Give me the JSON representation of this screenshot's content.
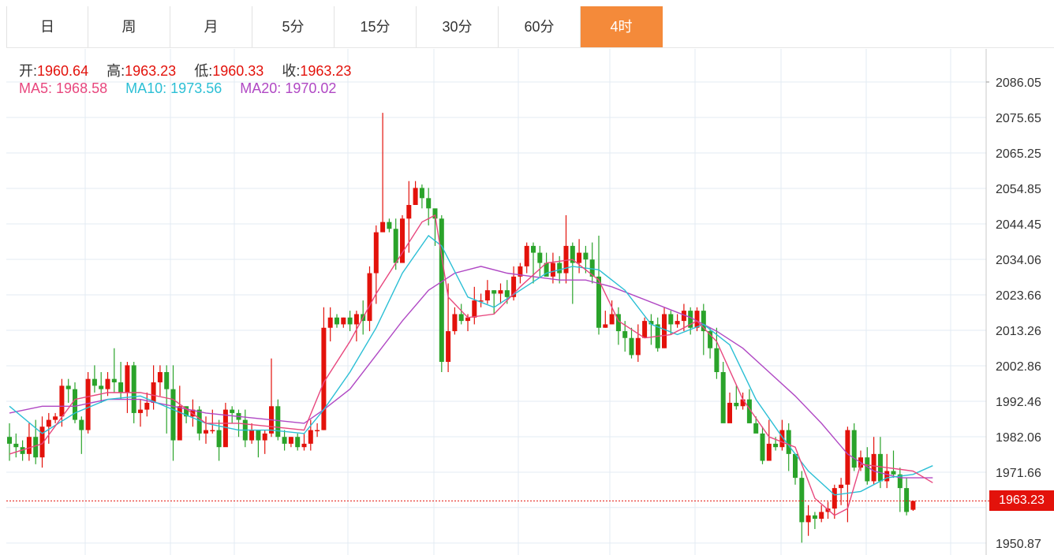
{
  "tabs": [
    {
      "label": "日",
      "active": false
    },
    {
      "label": "周",
      "active": false
    },
    {
      "label": "月",
      "active": false
    },
    {
      "label": "5分",
      "active": false
    },
    {
      "label": "15分",
      "active": false
    },
    {
      "label": "30分",
      "active": false
    },
    {
      "label": "60分",
      "active": false
    },
    {
      "label": "4时",
      "active": true
    }
  ],
  "info": {
    "open_label": "开:",
    "open_value": "1960.64",
    "high_label": "高:",
    "high_value": "1963.23",
    "low_label": "低:",
    "low_value": "1960.33",
    "close_label": "收:",
    "close_value": "1963.23",
    "ma5_label": "MA5:",
    "ma5_value": "1968.58",
    "ma10_label": "MA10:",
    "ma10_value": "1973.56",
    "ma20_label": "MA20:",
    "ma20_value": "1970.02"
  },
  "current_price_label": "1963.23",
  "colors": {
    "up": "#e3120b",
    "down": "#2aa32a",
    "ma5": "#e8477e",
    "ma10": "#2bbfd5",
    "ma20": "#b048c4",
    "active_tab": "#f48a3a",
    "grid": "#e3ebf3"
  },
  "chart_data": {
    "type": "candlestick",
    "y_ticks": [
      "2086.05",
      "2075.65",
      "2065.25",
      "2054.85",
      "2044.45",
      "2034.06",
      "2023.66",
      "2013.26",
      "2002.86",
      "1992.46",
      "1982.06",
      "1971.66",
      "1950.87"
    ],
    "ylim": [
      1948,
      2092
    ],
    "current_price": 1963.23,
    "candles": [
      [
        1982,
        1980,
        1986,
        1975
      ],
      [
        1980,
        1979,
        1983,
        1976
      ],
      [
        1979,
        1977,
        1981,
        1975
      ],
      [
        1977,
        1982,
        1986,
        1975
      ],
      [
        1982,
        1976,
        1987,
        1974
      ],
      [
        1976,
        1985,
        1988,
        1973
      ],
      [
        1985,
        1987,
        1989,
        1980
      ],
      [
        1987,
        1988,
        1989,
        1986
      ],
      [
        1988,
        1997,
        1999,
        1985
      ],
      [
        1997,
        1996,
        1999,
        1992
      ],
      [
        1996,
        1987,
        1998,
        1986
      ],
      [
        1987,
        1984,
        1988,
        1977
      ],
      [
        1984,
        1999,
        2001,
        1983
      ],
      [
        1999,
        1997,
        2003,
        1995
      ],
      [
        1997,
        1996,
        2001,
        1992
      ],
      [
        1996,
        1999,
        2001,
        1994
      ],
      [
        1999,
        1998,
        2008,
        1995
      ],
      [
        1998,
        1995,
        2004,
        1993
      ],
      [
        1995,
        2003,
        2004,
        1989
      ],
      [
        2003,
        1989,
        2004,
        1986
      ],
      [
        1989,
        1990,
        1993,
        1985
      ],
      [
        1990,
        1992,
        1995,
        1988
      ],
      [
        1992,
        1998,
        2003,
        1990
      ],
      [
        1998,
        2001,
        2003,
        1994
      ],
      [
        2001,
        1996,
        2003,
        1983
      ],
      [
        1996,
        1981,
        2003,
        1975
      ],
      [
        1981,
        1991,
        1997,
        1985
      ],
      [
        1991,
        1988,
        1991,
        1986
      ],
      [
        1988,
        1990,
        1993,
        1985
      ],
      [
        1990,
        1983,
        1991,
        1981
      ],
      [
        1983,
        1984,
        1988,
        1980
      ],
      [
        1984,
        1984,
        1990,
        1983
      ],
      [
        1984,
        1979,
        1987,
        1975
      ],
      [
        1979,
        1990,
        1992,
        1985
      ],
      [
        1990,
        1989,
        1991,
        1986
      ],
      [
        1989,
        1987,
        1990,
        1982
      ],
      [
        1987,
        1981,
        1990,
        1979
      ],
      [
        1981,
        1984,
        1986,
        1980
      ],
      [
        1984,
        1981,
        1983,
        1976
      ],
      [
        1981,
        1983,
        1984,
        1977
      ],
      [
        1983,
        1991,
        2005,
        1982
      ],
      [
        1991,
        1982,
        1993,
        1981
      ],
      [
        1982,
        1980,
        1984,
        1978
      ],
      [
        1980,
        1982,
        1982,
        1979
      ],
      [
        1982,
        1979,
        1983,
        1978
      ],
      [
        1979,
        1980,
        1983,
        1978
      ],
      [
        1980,
        1984,
        1987,
        1978
      ],
      [
        1984,
        1984,
        1986,
        1982
      ],
      [
        1984,
        2014,
        2020,
        1984
      ],
      [
        2014,
        2017,
        2020,
        2010
      ],
      [
        2017,
        2015,
        2018,
        2014
      ],
      [
        2015,
        2017,
        2017,
        2014
      ],
      [
        2017,
        2015,
        2019,
        2013
      ],
      [
        2015,
        2018,
        2019,
        2010
      ],
      [
        2018,
        2016,
        2022,
        2012
      ],
      [
        2016,
        2030,
        2032,
        2013
      ],
      [
        2030,
        2042,
        2044,
        2021
      ],
      [
        2042,
        2045,
        2077,
        2045
      ],
      [
        2045,
        2043,
        2046,
        2042
      ],
      [
        2043,
        2033,
        2046,
        2031
      ],
      [
        2033,
        2046,
        2047,
        2034
      ],
      [
        2046,
        2050,
        2057,
        2036
      ],
      [
        2050,
        2055,
        2057,
        2052
      ],
      [
        2055,
        2052,
        2056,
        2049
      ],
      [
        2052,
        2049,
        2055,
        2044
      ],
      [
        2049,
        2046,
        2047,
        2038
      ],
      [
        2046,
        2004,
        2047,
        2001
      ],
      [
        2004,
        2013,
        2027,
        2001
      ],
      [
        2013,
        2018,
        2020,
        2012
      ],
      [
        2018,
        2016,
        2021,
        2015
      ],
      [
        2016,
        2017,
        2018,
        2013
      ],
      [
        2017,
        2022,
        2026,
        2015
      ],
      [
        2022,
        2022,
        2024,
        2020
      ],
      [
        2022,
        2025,
        2028,
        2021
      ],
      [
        2025,
        2024,
        2025,
        2018
      ],
      [
        2024,
        2025,
        2027,
        2021
      ],
      [
        2025,
        2023,
        2028,
        2021
      ],
      [
        2023,
        2029,
        2032,
        2022
      ],
      [
        2029,
        2032,
        2033,
        2027
      ],
      [
        2032,
        2038,
        2039,
        2030
      ],
      [
        2038,
        2036,
        2039,
        2027
      ],
      [
        2036,
        2033,
        2038,
        2029
      ],
      [
        2033,
        2029,
        2036,
        2030
      ],
      [
        2029,
        2033,
        2036,
        2027
      ],
      [
        2033,
        2030,
        2035,
        2027
      ],
      [
        2030,
        2038,
        2047,
        2027
      ],
      [
        2038,
        2033,
        2039,
        2021
      ],
      [
        2033,
        2036,
        2040,
        2030
      ],
      [
        2036,
        2034,
        2038,
        2030
      ],
      [
        2034,
        2029,
        2039,
        2027
      ],
      [
        2029,
        2014,
        2041,
        2012
      ],
      [
        2014,
        2015,
        2019,
        2014
      ],
      [
        2015,
        2018,
        2022,
        2015
      ],
      [
        2018,
        2013,
        2020,
        2009
      ],
      [
        2013,
        2011,
        2016,
        2007
      ],
      [
        2011,
        2006,
        2014,
        2005
      ],
      [
        2006,
        2011,
        2015,
        2004
      ],
      [
        2011,
        2016,
        2017,
        2015
      ],
      [
        2016,
        2015,
        2018,
        2009
      ],
      [
        2015,
        2008,
        2017,
        2007
      ],
      [
        2008,
        2018,
        2020,
        2008
      ],
      [
        2018,
        2015,
        2019,
        2012
      ],
      [
        2015,
        2016,
        2018,
        2014
      ],
      [
        2016,
        2019,
        2021,
        2013
      ],
      [
        2019,
        2014,
        2020,
        2012
      ],
      [
        2014,
        2019,
        2020,
        2013
      ],
      [
        2019,
        2013,
        2021,
        2006
      ],
      [
        2013,
        2008,
        2014,
        2005
      ],
      [
        2008,
        2001,
        2014,
        1999
      ],
      [
        2001,
        1986,
        2004,
        1987
      ],
      [
        1986,
        1992,
        1995,
        1987
      ],
      [
        1992,
        1991,
        1997,
        1990
      ],
      [
        1991,
        1993,
        1995,
        1990
      ],
      [
        1993,
        1986,
        1996,
        1986
      ],
      [
        1986,
        1983,
        1988,
        1985
      ],
      [
        1983,
        1975,
        1985,
        1974
      ],
      [
        1975,
        1980,
        1987,
        1976
      ],
      [
        1980,
        1979,
        1982,
        1978
      ],
      [
        1979,
        1984,
        1987,
        1978
      ],
      [
        1984,
        1977,
        1986,
        1972
      ],
      [
        1977,
        1970,
        1976,
        1968
      ],
      [
        1970,
        1957,
        1972,
        1951
      ],
      [
        1957,
        1959,
        1962,
        1953
      ],
      [
        1959,
        1958,
        1960,
        1955
      ],
      [
        1958,
        1960,
        1962,
        1957
      ],
      [
        1960,
        1961,
        1963,
        1958
      ],
      [
        1961,
        1967,
        1968,
        1958
      ],
      [
        1967,
        1968,
        1970,
        1962
      ],
      [
        1968,
        1984,
        1985,
        1957
      ],
      [
        1984,
        1973,
        1986,
        1972
      ],
      [
        1973,
        1976,
        1978,
        1972
      ],
      [
        1976,
        1969,
        1979,
        1968
      ],
      [
        1969,
        1977,
        1982,
        1968
      ],
      [
        1977,
        1969,
        1982,
        1967
      ],
      [
        1969,
        1972,
        1977,
        1967
      ],
      [
        1972,
        1971,
        1978,
        1970
      ],
      [
        1971,
        1967,
        1973,
        1960
      ],
      [
        1967,
        1960,
        1970,
        1959
      ],
      [
        1960.64,
        1963.23,
        1963.23,
        1960.33
      ]
    ],
    "ma5": [
      [
        0,
        1977
      ],
      [
        5,
        1980
      ],
      [
        10,
        1993
      ],
      [
        15,
        1995
      ],
      [
        20,
        1995
      ],
      [
        25,
        1993
      ],
      [
        30,
        1986
      ],
      [
        35,
        1986
      ],
      [
        40,
        1985
      ],
      [
        45,
        1984
      ],
      [
        48,
        1998
      ],
      [
        52,
        2010
      ],
      [
        56,
        2024
      ],
      [
        60,
        2036
      ],
      [
        63,
        2045
      ],
      [
        65,
        2047
      ],
      [
        67,
        2023
      ],
      [
        70,
        2017
      ],
      [
        74,
        2018
      ],
      [
        78,
        2026
      ],
      [
        82,
        2033
      ],
      [
        86,
        2034
      ],
      [
        90,
        2028
      ],
      [
        93,
        2016
      ],
      [
        97,
        2011
      ],
      [
        101,
        2012
      ],
      [
        105,
        2016
      ],
      [
        108,
        2010
      ],
      [
        112,
        1993
      ],
      [
        116,
        1982
      ],
      [
        120,
        1979
      ],
      [
        123,
        1964
      ],
      [
        126,
        1959
      ],
      [
        128,
        1961
      ],
      [
        130,
        1974
      ],
      [
        134,
        1973
      ],
      [
        138,
        1972
      ],
      [
        141,
        1968.58
      ]
    ],
    "ma10": [
      [
        0,
        1991
      ],
      [
        5,
        1983
      ],
      [
        10,
        1989
      ],
      [
        15,
        1993
      ],
      [
        20,
        1994
      ],
      [
        25,
        1990
      ],
      [
        30,
        1986
      ],
      [
        35,
        1984
      ],
      [
        40,
        1984
      ],
      [
        45,
        1983
      ],
      [
        48,
        1990
      ],
      [
        52,
        2001
      ],
      [
        56,
        2014
      ],
      [
        60,
        2030
      ],
      [
        64,
        2041
      ],
      [
        66,
        2038
      ],
      [
        70,
        2023
      ],
      [
        74,
        2020
      ],
      [
        78,
        2025
      ],
      [
        82,
        2030
      ],
      [
        86,
        2032
      ],
      [
        90,
        2031
      ],
      [
        94,
        2025
      ],
      [
        98,
        2015
      ],
      [
        102,
        2012
      ],
      [
        106,
        2015
      ],
      [
        110,
        2009
      ],
      [
        114,
        1993
      ],
      [
        118,
        1982
      ],
      [
        122,
        1972
      ],
      [
        126,
        1965
      ],
      [
        130,
        1966
      ],
      [
        134,
        1970
      ],
      [
        138,
        1971
      ],
      [
        141,
        1973.56
      ]
    ],
    "ma20": [
      [
        0,
        1989
      ],
      [
        5,
        1991
      ],
      [
        10,
        1991
      ],
      [
        15,
        1993
      ],
      [
        20,
        1993
      ],
      [
        25,
        1991
      ],
      [
        30,
        1989
      ],
      [
        35,
        1988
      ],
      [
        40,
        1987
      ],
      [
        45,
        1986
      ],
      [
        48,
        1990
      ],
      [
        52,
        1996
      ],
      [
        56,
        2006
      ],
      [
        60,
        2016
      ],
      [
        64,
        2025
      ],
      [
        68,
        2030
      ],
      [
        72,
        2032
      ],
      [
        76,
        2030
      ],
      [
        80,
        2029
      ],
      [
        84,
        2028
      ],
      [
        88,
        2028
      ],
      [
        92,
        2026
      ],
      [
        96,
        2023
      ],
      [
        100,
        2020
      ],
      [
        104,
        2017
      ],
      [
        108,
        2013
      ],
      [
        112,
        2008
      ],
      [
        116,
        2001
      ],
      [
        120,
        1994
      ],
      [
        124,
        1986
      ],
      [
        128,
        1977
      ],
      [
        132,
        1972
      ],
      [
        136,
        1970
      ],
      [
        141,
        1970.02
      ]
    ]
  }
}
